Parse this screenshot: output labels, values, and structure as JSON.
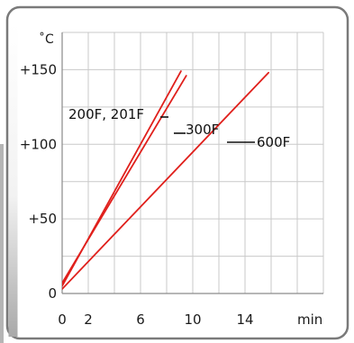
{
  "chart_data": {
    "type": "line",
    "y_unit": "˚C",
    "x_unit": "min",
    "xlim": [
      0,
      20
    ],
    "ylim": [
      0,
      175
    ],
    "x_ticks": [
      {
        "value": 0,
        "label": "0"
      },
      {
        "value": 2,
        "label": "2"
      },
      {
        "value": 6,
        "label": "6"
      },
      {
        "value": 10,
        "label": "10"
      },
      {
        "value": 14,
        "label": "14"
      }
    ],
    "y_ticks": [
      {
        "value": 0,
        "label": "0"
      },
      {
        "value": 50,
        "label": "+50"
      },
      {
        "value": 100,
        "label": "+100"
      },
      {
        "value": 150,
        "label": "+150"
      }
    ],
    "x_grid": [
      0,
      2,
      4,
      6,
      8,
      10,
      12,
      14,
      16,
      18,
      20
    ],
    "y_grid": [
      0,
      25,
      50,
      75,
      100,
      125,
      150,
      175
    ],
    "grid": true,
    "series": [
      {
        "name": "200F, 201F",
        "x": [
          0,
          9.1
        ],
        "y": [
          5,
          149
        ],
        "color": "#e0201c"
      },
      {
        "name": "300F",
        "x": [
          0,
          9.5
        ],
        "y": [
          7,
          146
        ],
        "color": "#e0201c"
      },
      {
        "name": "600F",
        "x": [
          0,
          15.8
        ],
        "y": [
          3,
          148
        ],
        "color": "#e0201c"
      }
    ]
  }
}
